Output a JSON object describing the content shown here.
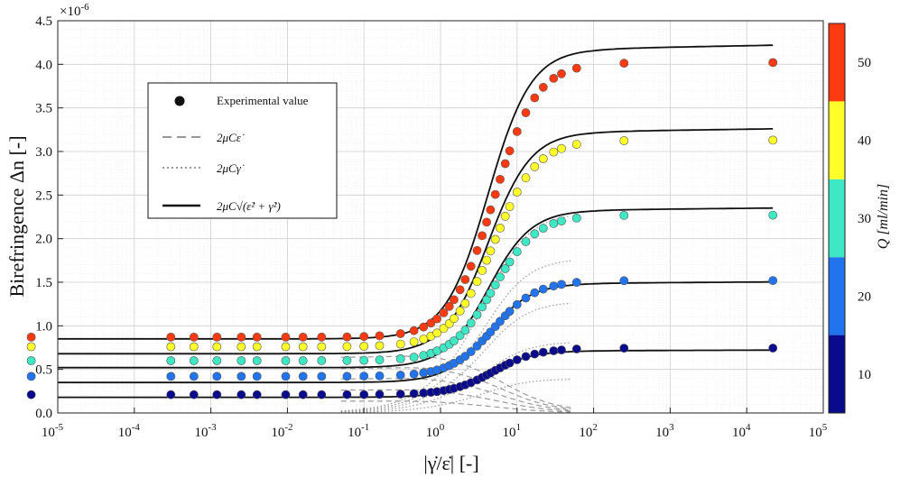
{
  "chart_data": {
    "type": "scatter",
    "x_scale": "log",
    "xlim_exponents": [
      -5,
      5
    ],
    "ylim": [
      0,
      4.5
    ],
    "y_multiplier_label": "×10",
    "y_multiplier_exponent": "-6",
    "ylabel": "Birefringence Δn [-]",
    "xlabel": "|γ̇/ε̇| [-]",
    "x_tick_base": "10",
    "x_tick_exponents": [
      "-5",
      "-4",
      "-3",
      "-2",
      "-1",
      "0",
      "1",
      "2",
      "3",
      "4",
      "5"
    ],
    "y_tick_labels": [
      "0.0",
      "0.5",
      "1.0",
      "1.5",
      "2.0",
      "2.5",
      "3.0",
      "3.5",
      "4.0",
      "4.5"
    ],
    "grid": true,
    "colorbar": {
      "label": "Q [ml/min]",
      "ticks": [
        "10",
        "20",
        "30",
        "40",
        "50"
      ],
      "colors": [
        "#0a0a8c",
        "#2174ee",
        "#3fe8c4",
        "#ffff2a",
        "#ff3a10"
      ]
    },
    "legend": {
      "position": "upper-left",
      "entries": [
        {
          "label": "Experimental value",
          "style": "marker"
        },
        {
          "label": "2μCε̇",
          "style": "dashed"
        },
        {
          "label": "2μCγ̇",
          "style": "dotted"
        },
        {
          "label": "2μC√(ε̇² + γ̇²)",
          "style": "solid"
        }
      ]
    },
    "x_points": [
      4.5e-06,
      0.0003,
      0.0006,
      0.0012,
      0.0025,
      0.004,
      0.0095,
      0.016,
      0.028,
      0.06,
      0.1,
      0.16,
      0.3,
      0.45,
      0.6,
      0.75,
      0.9,
      1.1,
      1.3,
      1.5,
      1.8,
      2.1,
      2.5,
      3.0,
      3.5,
      4.0,
      4.5,
      5.2,
      6.0,
      7.0,
      8.0,
      10,
      13,
      17,
      22,
      30,
      38,
      60,
      250,
      22000
    ],
    "series": [
      {
        "name": "Q=10",
        "color": "#0a0a8c",
        "plateau_low": 0.18,
        "plateau_high": 0.715,
        "point_low": 0.21,
        "point_high": 0.745
      },
      {
        "name": "Q=20",
        "color": "#2174ee",
        "plateau_low": 0.35,
        "plateau_high": 1.49,
        "point_low": 0.42,
        "point_high": 1.52
      },
      {
        "name": "Q=30",
        "color": "#3fe8c4",
        "plateau_low": 0.52,
        "plateau_high": 2.33,
        "point_low": 0.6,
        "point_high": 2.27
      },
      {
        "name": "Q=40",
        "color": "#ffff2a",
        "plateau_low": 0.68,
        "plateau_high": 3.23,
        "point_low": 0.76,
        "point_high": 3.13
      },
      {
        "name": "Q=50",
        "color": "#ff3a10",
        "plateau_low": 0.85,
        "plateau_high": 4.18,
        "point_low": 0.87,
        "point_high": 4.02
      }
    ]
  }
}
